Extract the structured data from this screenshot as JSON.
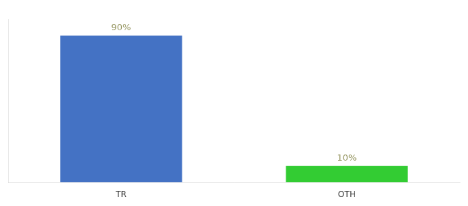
{
  "chart_data": {
    "type": "bar",
    "categories": [
      "TR",
      "OTH"
    ],
    "values": [
      90,
      10
    ],
    "value_labels": [
      "90%",
      "10%"
    ],
    "colors": [
      "#4472c4",
      "#33cc33"
    ],
    "ylim": [
      0,
      100
    ],
    "data_labels": true,
    "tick_labels": "x",
    "grid": false
  }
}
